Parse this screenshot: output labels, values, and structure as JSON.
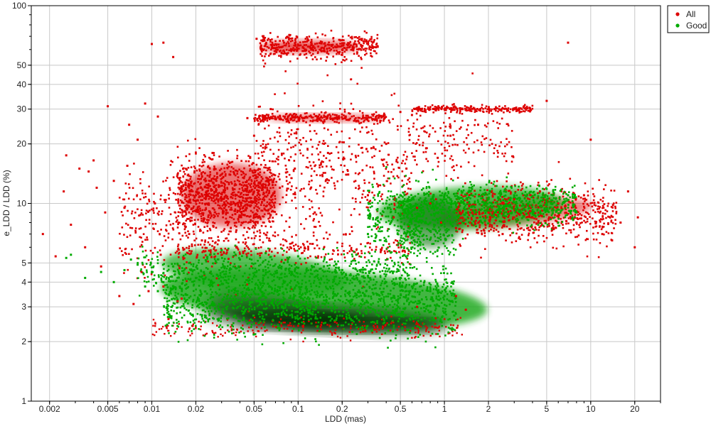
{
  "chart_data": {
    "type": "scatter",
    "xlabel": "LDD (mas)",
    "ylabel": "e_LDD / LDD (%)",
    "x_scale": "log",
    "y_scale": "log",
    "xlim": [
      0.0015,
      30
    ],
    "ylim": [
      1,
      100
    ],
    "grid": true,
    "legend_position": "top-right, outside plot",
    "x_ticks": [
      {
        "value": 0.002,
        "label": "0.002"
      },
      {
        "value": 0.005,
        "label": "0.005"
      },
      {
        "value": 0.01,
        "label": "0.01"
      },
      {
        "value": 0.02,
        "label": "0.02"
      },
      {
        "value": 0.05,
        "label": "0.05"
      },
      {
        "value": 0.1,
        "label": "0.1"
      },
      {
        "value": 0.2,
        "label": "0.2"
      },
      {
        "value": 0.5,
        "label": "0.5"
      },
      {
        "value": 1,
        "label": "1"
      },
      {
        "value": 2,
        "label": "2"
      },
      {
        "value": 5,
        "label": "5"
      },
      {
        "value": 10,
        "label": "10"
      },
      {
        "value": 20,
        "label": "20"
      }
    ],
    "y_ticks": [
      {
        "value": 1,
        "label": "1"
      },
      {
        "value": 2,
        "label": "2"
      },
      {
        "value": 3,
        "label": "3"
      },
      {
        "value": 4,
        "label": "4"
      },
      {
        "value": 5,
        "label": "5"
      },
      {
        "value": 10,
        "label": "10"
      },
      {
        "value": 20,
        "label": "20"
      },
      {
        "value": 30,
        "label": "30"
      },
      {
        "value": 40,
        "label": "40"
      },
      {
        "value": 50,
        "label": "50"
      },
      {
        "value": 100,
        "label": "100"
      }
    ],
    "series": [
      {
        "name": "All",
        "color": "#dd0000",
        "points": [
          [
            0.0018,
            7.0
          ],
          [
            0.0022,
            5.4
          ],
          [
            0.0025,
            11.5
          ],
          [
            0.0026,
            17.5
          ],
          [
            0.0028,
            7.8
          ],
          [
            0.0032,
            15.0
          ],
          [
            0.0035,
            6.0
          ],
          [
            0.0037,
            14.5
          ],
          [
            0.004,
            16.5
          ],
          [
            0.0042,
            12.0
          ],
          [
            0.0045,
            4.8
          ],
          [
            0.0048,
            9.0
          ],
          [
            0.005,
            31.0
          ],
          [
            0.0055,
            13.0
          ],
          [
            0.006,
            3.4
          ],
          [
            0.0065,
            9.5
          ],
          [
            0.0068,
            15.5
          ],
          [
            0.007,
            25.0
          ],
          [
            0.0075,
            3.1
          ],
          [
            0.008,
            21.0
          ],
          [
            0.0085,
            4.5
          ],
          [
            0.009,
            32.0
          ],
          [
            0.0095,
            3.6
          ],
          [
            0.01,
            64.0
          ],
          [
            0.0105,
            10.0
          ],
          [
            0.011,
            27.5
          ],
          [
            0.0115,
            5.5
          ],
          [
            0.012,
            65.0
          ],
          [
            0.013,
            2.6
          ],
          [
            0.014,
            55.0
          ],
          [
            0.015,
            14.0
          ],
          [
            0.016,
            3.3
          ],
          [
            0.017,
            12.5
          ],
          [
            0.018,
            7.0
          ],
          [
            0.019,
            2.4
          ],
          [
            0.02,
            11.0
          ],
          [
            0.022,
            6.5
          ],
          [
            0.024,
            12.0
          ],
          [
            0.025,
            9.0
          ],
          [
            0.026,
            18.0
          ],
          [
            0.028,
            13.5
          ],
          [
            0.03,
            10.5
          ],
          [
            0.032,
            8.0
          ],
          [
            0.034,
            14.0
          ],
          [
            0.036,
            11.0
          ],
          [
            0.038,
            6.0
          ],
          [
            0.04,
            12.5
          ],
          [
            0.042,
            9.5
          ],
          [
            0.045,
            27.0
          ],
          [
            0.047,
            17.0
          ],
          [
            0.05,
            22.0
          ],
          [
            0.052,
            68.0
          ],
          [
            0.055,
            8.5
          ],
          [
            0.058,
            26.0
          ],
          [
            0.06,
            64.0
          ],
          [
            0.065,
            30.0
          ],
          [
            0.07,
            61.0
          ],
          [
            0.075,
            12.0
          ],
          [
            0.08,
            65.0
          ],
          [
            0.085,
            26.5
          ],
          [
            0.09,
            60.0
          ],
          [
            0.095,
            15.0
          ],
          [
            0.1,
            63.0
          ],
          [
            0.11,
            27.0
          ],
          [
            0.12,
            62.0
          ],
          [
            0.13,
            9.0
          ],
          [
            0.14,
            26.5
          ],
          [
            0.15,
            61.0
          ],
          [
            0.16,
            18.0
          ],
          [
            0.18,
            27.0
          ],
          [
            0.2,
            63.0
          ],
          [
            0.22,
            14.0
          ],
          [
            0.25,
            26.0
          ],
          [
            0.28,
            60.0
          ],
          [
            0.3,
            11.0
          ],
          [
            0.35,
            62.0
          ],
          [
            0.4,
            20.0
          ],
          [
            0.45,
            8.5
          ],
          [
            0.5,
            29.0
          ],
          [
            0.55,
            15.0
          ],
          [
            0.6,
            28.0
          ],
          [
            0.65,
            9.5
          ],
          [
            0.7,
            30.0
          ],
          [
            0.75,
            19.0
          ],
          [
            0.8,
            10.0
          ],
          [
            0.85,
            30.0
          ],
          [
            0.9,
            17.0
          ],
          [
            0.95,
            8.0
          ],
          [
            1.0,
            30.0
          ],
          [
            1.1,
            22.0
          ],
          [
            1.2,
            7.5
          ],
          [
            1.3,
            30.0
          ],
          [
            1.5,
            8.0
          ],
          [
            1.7,
            25.0
          ],
          [
            2.0,
            9.0
          ],
          [
            2.2,
            30.0
          ],
          [
            2.5,
            7.0
          ],
          [
            3.0,
            10.5
          ],
          [
            3.5,
            31.0
          ],
          [
            4.0,
            8.5
          ],
          [
            4.5,
            11.5
          ],
          [
            5.0,
            33.0
          ],
          [
            5.5,
            7.5
          ],
          [
            6.0,
            10.0
          ],
          [
            7.0,
            65.0
          ],
          [
            8.0,
            8.0
          ],
          [
            9.0,
            11.0
          ],
          [
            10.0,
            21.0
          ],
          [
            12.0,
            7.0
          ],
          [
            14.0,
            6.5
          ],
          [
            16.0,
            8.0
          ],
          [
            18.0,
            11.5
          ],
          [
            20.0,
            6.0
          ],
          [
            21.0,
            8.5
          ],
          [
            0.65,
            3.0
          ],
          [
            1.2,
            3.4
          ],
          [
            1.4,
            2.9
          ],
          [
            0.015,
            3.2
          ],
          [
            0.012,
            3.8
          ]
        ]
      },
      {
        "name": "Good",
        "color": "#00aa00",
        "points": [
          [
            0.0026,
            5.3
          ],
          [
            0.0028,
            5.5
          ],
          [
            0.0035,
            4.2
          ],
          [
            0.0045,
            4.5
          ],
          [
            0.0055,
            4.0
          ],
          [
            0.0065,
            4.6
          ],
          [
            0.0072,
            5.2
          ],
          [
            0.008,
            4.9
          ],
          [
            0.009,
            3.8
          ],
          [
            0.01,
            4.5
          ],
          [
            0.011,
            3.6
          ],
          [
            0.012,
            4.0
          ],
          [
            0.014,
            4.8
          ],
          [
            0.016,
            3.7
          ],
          [
            0.018,
            5.0
          ],
          [
            0.02,
            4.2
          ],
          [
            0.025,
            5.5
          ],
          [
            0.03,
            5.8
          ],
          [
            0.04,
            5.2
          ],
          [
            0.06,
            5.6
          ],
          [
            0.08,
            5.0
          ],
          [
            0.1,
            5.4
          ],
          [
            0.15,
            4.8
          ],
          [
            0.2,
            4.6
          ],
          [
            0.25,
            5.5
          ],
          [
            0.3,
            4.3
          ],
          [
            0.4,
            4.0
          ],
          [
            0.5,
            4.2
          ],
          [
            0.6,
            3.8
          ],
          [
            0.8,
            3.6
          ],
          [
            1.0,
            3.4
          ],
          [
            1.1,
            3.2
          ],
          [
            0.3,
            7.0
          ],
          [
            0.35,
            8.5
          ],
          [
            0.4,
            10.0
          ],
          [
            0.5,
            11.0
          ],
          [
            0.6,
            10.5
          ],
          [
            0.7,
            9.0
          ],
          [
            0.8,
            8.0
          ],
          [
            0.9,
            9.5
          ],
          [
            1.0,
            11.0
          ],
          [
            1.2,
            10.0
          ],
          [
            1.5,
            11.5
          ],
          [
            2.0,
            10.5
          ],
          [
            2.5,
            9.5
          ],
          [
            3.0,
            11.0
          ],
          [
            4.0,
            9.0
          ],
          [
            5.0,
            10.0
          ],
          [
            6.0,
            8.0
          ],
          [
            7.0,
            11.0
          ],
          [
            8.0,
            9.0
          ]
        ]
      }
    ]
  },
  "legend": {
    "items": [
      {
        "label": "All",
        "color": "#dd0000"
      },
      {
        "label": "Good",
        "color": "#00aa00"
      }
    ]
  }
}
